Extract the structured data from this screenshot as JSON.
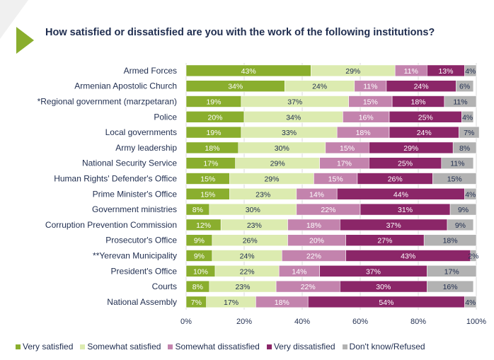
{
  "colors": {
    "very_satisfied": "#8aae2e",
    "somewhat_satisfied": "#dcebb0",
    "somewhat_dissatisfied": "#c383ad",
    "very_dissatisfied": "#8b2668",
    "dont_know": "#b2b2b2"
  },
  "chart_data": {
    "type": "bar",
    "orientation": "horizontal",
    "stacked": true,
    "title": "How satisfied or dissatisfied are you with the work of the following institutions?",
    "categories": [
      "Armed Forces",
      "Armenian Apostolic Church",
      "*Regional government (marzpetaran)",
      "Police",
      "Local governments",
      "Army leadership",
      "National Security Service",
      "Human Rights' Defender's Office",
      "Prime Minister's Office",
      "Government ministries",
      "Corruption Prevention Commission",
      "Prosecutor's Office",
      "**Yerevan Municipality",
      "President's Office",
      "Courts",
      "National Assembly"
    ],
    "series": [
      {
        "name": "Very satisfied",
        "color_key": "very_satisfied",
        "values": [
          43,
          34,
          19,
          20,
          19,
          18,
          17,
          15,
          15,
          8,
          12,
          9,
          9,
          10,
          8,
          7
        ]
      },
      {
        "name": "Somewhat satisfied",
        "color_key": "somewhat_satisfied",
        "values": [
          29,
          24,
          37,
          34,
          33,
          30,
          29,
          29,
          23,
          30,
          23,
          26,
          24,
          22,
          23,
          17
        ]
      },
      {
        "name": "Somewhat dissatisfied",
        "color_key": "somewhat_dissatisfied",
        "values": [
          11,
          11,
          15,
          16,
          18,
          15,
          17,
          15,
          14,
          22,
          18,
          20,
          22,
          14,
          22,
          18
        ]
      },
      {
        "name": "Very dissatisfied",
        "color_key": "very_dissatisfied",
        "values": [
          13,
          24,
          18,
          25,
          24,
          29,
          25,
          26,
          44,
          31,
          37,
          27,
          43,
          37,
          30,
          54
        ]
      },
      {
        "name": "Don't know/Refused",
        "color_key": "dont_know",
        "values": [
          4,
          6,
          11,
          4,
          7,
          8,
          11,
          15,
          4,
          9,
          9,
          18,
          2,
          17,
          16,
          4
        ]
      }
    ],
    "xlim": [
      0,
      100
    ],
    "xticks": [
      "0%",
      "20%",
      "40%",
      "60%",
      "80%",
      "100%"
    ],
    "legend_position": "bottom"
  }
}
